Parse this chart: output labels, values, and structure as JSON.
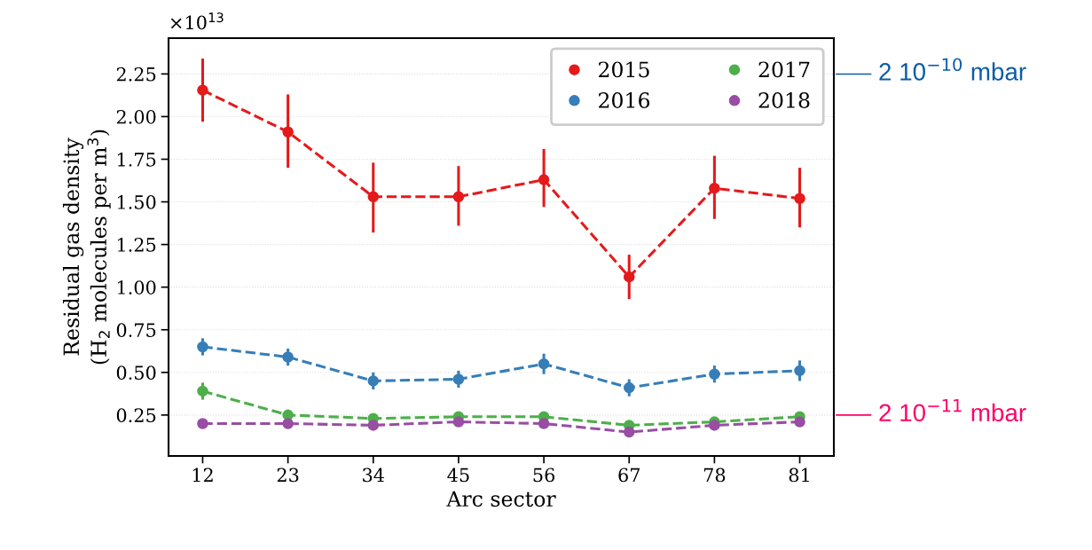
{
  "chart_data": {
    "type": "line",
    "xlabel": "Arc sector",
    "ylabel": "Residual gas density\n(H$_{2}$ molecules per m$^{3}$)",
    "categories": [
      "12",
      "23",
      "34",
      "45",
      "56",
      "67",
      "78",
      "81"
    ],
    "series": [
      {
        "name": "2015",
        "color": "#e41a1c",
        "values": [
          2.155,
          1.91,
          1.53,
          1.53,
          1.63,
          1.06,
          1.58,
          1.52
        ],
        "errors": [
          [
            1.97,
            2.34
          ],
          [
            1.7,
            2.13
          ],
          [
            1.32,
            1.73
          ],
          [
            1.36,
            1.71
          ],
          [
            1.47,
            1.81
          ],
          [
            0.93,
            1.19
          ],
          [
            1.4,
            1.77
          ],
          [
            1.35,
            1.7
          ]
        ]
      },
      {
        "name": "2016",
        "color": "#377eb8",
        "values": [
          0.65,
          0.59,
          0.45,
          0.46,
          0.55,
          0.41,
          0.49,
          0.51
        ],
        "errors": [
          0.05,
          0.05,
          0.05,
          0.05,
          0.06,
          0.05,
          0.05,
          0.06
        ]
      },
      {
        "name": "2017",
        "color": "#4daf4a",
        "values": [
          0.39,
          0.25,
          0.23,
          0.24,
          0.24,
          0.19,
          0.21,
          0.24
        ],
        "errors": [
          0.05,
          0.02,
          0.02,
          0.02,
          0.02,
          0.02,
          0.02,
          0.02
        ]
      },
      {
        "name": "2018",
        "color": "#984ea3",
        "values": [
          0.2,
          0.2,
          0.19,
          0.21,
          0.2,
          0.15,
          0.19,
          0.21
        ],
        "errors": [
          0.02,
          0.02,
          0.02,
          0.02,
          0.02,
          0.02,
          0.02,
          0.02
        ]
      }
    ],
    "ylim": [
      0.01,
      2.46
    ],
    "yticks": [
      0.25,
      {
        "value": 0.5,
        "label": "0.50"
      },
      0.75,
      {
        "value": 1,
        "label": "1.00"
      },
      1.25,
      {
        "value": 1.5,
        "label": "1.50"
      },
      1.75,
      {
        "value": 2,
        "label": "2.00"
      },
      2.25
    ],
    "grid": "y",
    "legend": "top right",
    "marker": "circle",
    "line_style": "dashed",
    "annotations": [
      "×10$^{13}$",
      "2 10$^{−10}$ mbar",
      "2 10$^{−11}$ mbar"
    ]
  }
}
